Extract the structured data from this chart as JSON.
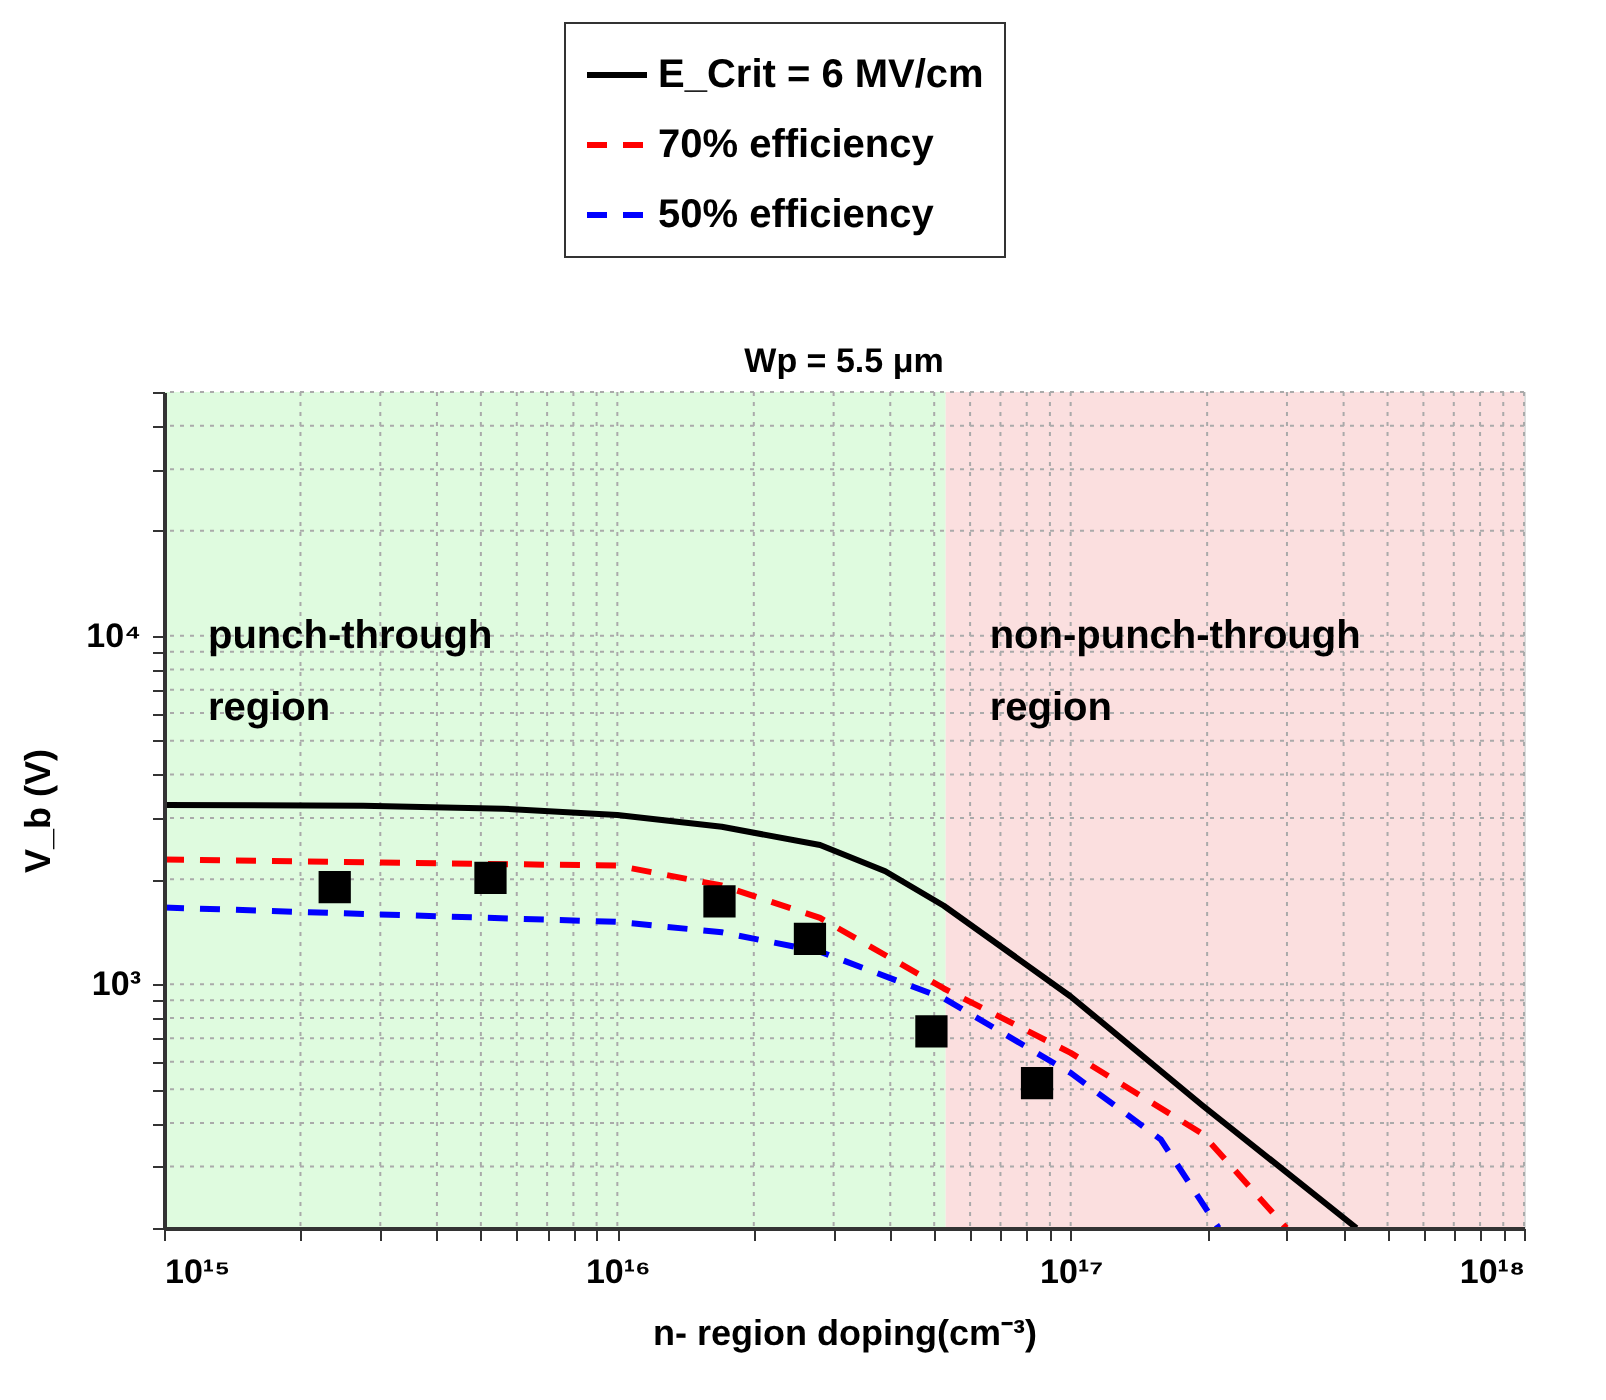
{
  "chart_data": {
    "type": "line",
    "title": "Wp = 5.5 μm",
    "xlabel": "n- region doping(cm⁻³)",
    "ylabel": "V_b (V)",
    "log": "xy",
    "grid": true,
    "legend": "top",
    "xlim": [
      1000000000000000.0,
      1e+18
    ],
    "ylim": [
      200,
      50000
    ],
    "xticks": [
      {
        "value": 1000000000000000.0,
        "label": "10¹⁵"
      },
      {
        "value": 2000000000000000.0,
        "label": null
      },
      {
        "value": 3000000000000000.0,
        "label": null
      },
      {
        "value": 4000000000000000.0,
        "label": null
      },
      {
        "value": 5000000000000000.0,
        "label": null
      },
      {
        "value": 6000000000000000.0,
        "label": null
      },
      {
        "value": 7000000000000000.0,
        "label": null
      },
      {
        "value": 8000000000000000.0,
        "label": null
      },
      {
        "value": 9000000000000000.0,
        "label": null
      },
      {
        "value": 1e+16,
        "label": "10¹⁶"
      },
      {
        "value": 2e+16,
        "label": null
      },
      {
        "value": 3e+16,
        "label": null
      },
      {
        "value": 4e+16,
        "label": null
      },
      {
        "value": 5e+16,
        "label": null
      },
      {
        "value": 6e+16,
        "label": null
      },
      {
        "value": 7e+16,
        "label": null
      },
      {
        "value": 8e+16,
        "label": null
      },
      {
        "value": 9e+16,
        "label": null
      },
      {
        "value": 1e+17,
        "label": "10¹⁷"
      },
      {
        "value": 2e+17,
        "label": null
      },
      {
        "value": 3e+17,
        "label": null
      },
      {
        "value": 4e+17,
        "label": null
      },
      {
        "value": 5e+17,
        "label": null
      },
      {
        "value": 6e+17,
        "label": null
      },
      {
        "value": 7e+17,
        "label": null
      },
      {
        "value": 8e+17,
        "label": null
      },
      {
        "value": 9e+17,
        "label": null
      },
      {
        "value": 1e+18,
        "label": "10¹⁸"
      }
    ],
    "yticks": [
      {
        "value": 200,
        "label": null
      },
      {
        "value": 300,
        "label": null
      },
      {
        "value": 400,
        "label": null
      },
      {
        "value": 500,
        "label": null
      },
      {
        "value": 600,
        "label": null
      },
      {
        "value": 700,
        "label": null
      },
      {
        "value": 800,
        "label": null
      },
      {
        "value": 900,
        "label": null
      },
      {
        "value": 1000,
        "label": "10³"
      },
      {
        "value": 2000,
        "label": null
      },
      {
        "value": 3000,
        "label": null
      },
      {
        "value": 4000,
        "label": null
      },
      {
        "value": 5000,
        "label": null
      },
      {
        "value": 6000,
        "label": null
      },
      {
        "value": 7000,
        "label": null
      },
      {
        "value": 8000,
        "label": null
      },
      {
        "value": 9000,
        "label": null
      },
      {
        "value": 10000,
        "label": "10⁴"
      },
      {
        "value": 20000,
        "label": null
      },
      {
        "value": 30000,
        "label": null
      },
      {
        "value": 40000,
        "label": null
      },
      {
        "value": 50000,
        "label": null
      }
    ],
    "bands": [
      {
        "axis": "x",
        "from": 1000000000000000.0,
        "to": 5.3e+16,
        "label": "punch-through\nregion",
        "color": "#dffbdf"
      },
      {
        "axis": "x",
        "from": 5.3e+16,
        "to": 1e+18,
        "label": "non-punch-through\nregion",
        "color": "#fbdfdf"
      }
    ],
    "series": [
      {
        "name": "E_Crit = 6 MV/cm",
        "color": "#000000",
        "type": "line",
        "line_style": "solid",
        "x": [
          1000000000000000.0,
          2750000000000000.0,
          5600000000000000.0,
          1e+16,
          1.7e+16,
          2.8e+16,
          3.9e+16,
          5.25e+16,
          1e+17,
          1.95e+17,
          4.27e+17
        ],
        "values": [
          3270,
          3250,
          3190,
          3060,
          2830,
          2510,
          2110,
          1680,
          923,
          450,
          200
        ]
      },
      {
        "name": "70% efficiency",
        "color": "#ff0000",
        "type": "line",
        "line_style": "dashed",
        "x": [
          1000000000000000.0,
          1e+16,
          1.7e+16,
          2.8e+16,
          5.25e+16,
          1e+17,
          1.95e+17,
          2.99e+17
        ],
        "values": [
          2280,
          2190,
          1920,
          1550,
          973,
          636,
          373,
          200
        ]
      },
      {
        "name": "50% efficiency",
        "color": "#0000ff",
        "type": "line",
        "line_style": "dashed",
        "x": [
          1000000000000000.0,
          1e+16,
          1.7e+16,
          2.8e+16,
          5.25e+16,
          1e+17,
          1.58e+17,
          2.12e+17
        ],
        "values": [
          1660,
          1510,
          1410,
          1240,
          912,
          557,
          359,
          200
        ]
      },
      {
        "color": "#000000",
        "type": "scatter",
        "marker": "square",
        "x": [
          2380000000000000.0,
          5250000000000000.0,
          1.68e+16,
          2.66e+16,
          4.93e+16,
          8.43e+16
        ],
        "values": [
          1900,
          2020,
          1730,
          1350,
          733,
          521
        ]
      }
    ]
  }
}
